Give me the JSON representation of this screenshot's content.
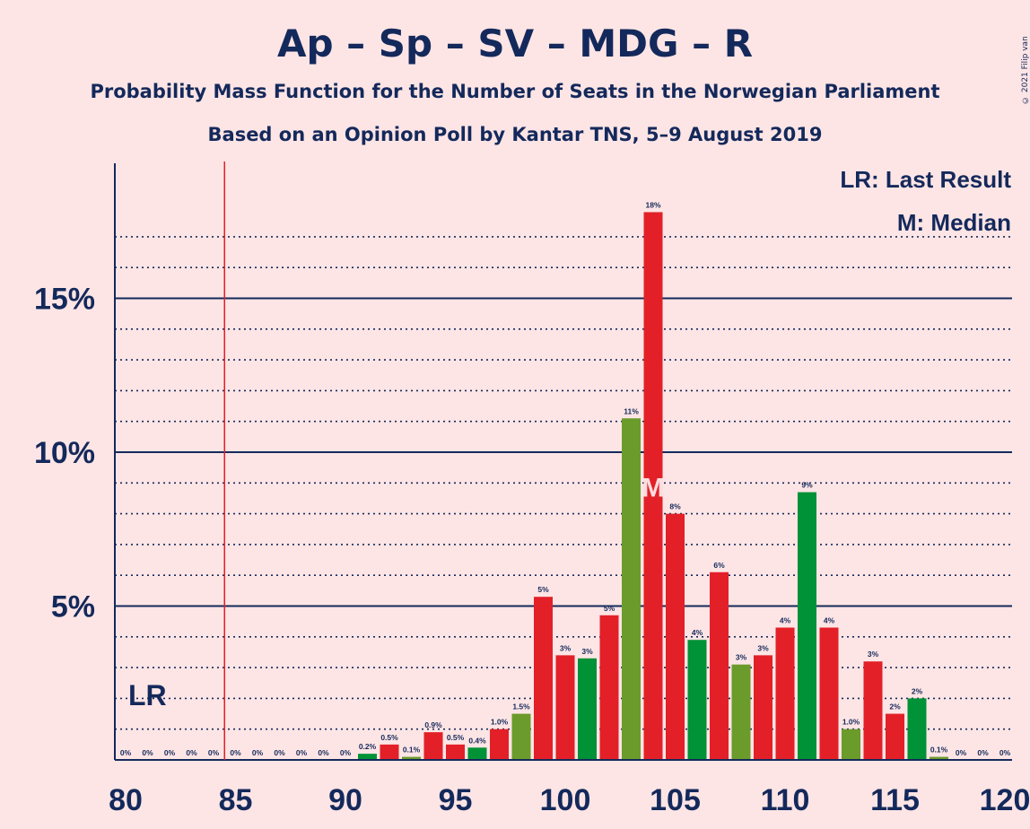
{
  "title": "Ap – Sp – SV – MDG – R",
  "subtitle": "Probability Mass Function for the Number of Seats in the Norwegian Parliament",
  "subtitle2": "Based on an Opinion Poll by Kantar TNS, 5–9 August 2019",
  "copyright": "© 2021 Filip van Laenen",
  "legend": {
    "lr": "LR: Last Result",
    "m": "M: Median"
  },
  "markers": {
    "last_result_label": "LR",
    "last_result_seat": 85,
    "median_label": "M",
    "median_seat": 104
  },
  "colors": {
    "background": "#FDE5E5",
    "text": "#14295B",
    "red": "#E32028",
    "green": "#009236",
    "olive": "#6A9B2B",
    "lr_line": "#E32028"
  },
  "chart_data": {
    "type": "bar",
    "xlim": [
      80,
      120
    ],
    "ylim": [
      0,
      18.5
    ],
    "x_ticks": [
      "80",
      "85",
      "90",
      "95",
      "100",
      "105",
      "110",
      "115",
      "120"
    ],
    "y_ticks": [
      "5%",
      "10%",
      "15%"
    ],
    "bars": [
      {
        "seat": 80,
        "value": 0,
        "label": "0%",
        "color": "red"
      },
      {
        "seat": 81,
        "value": 0,
        "label": "0%",
        "color": "red"
      },
      {
        "seat": 82,
        "value": 0,
        "label": "0%",
        "color": "red"
      },
      {
        "seat": 83,
        "value": 0,
        "label": "0%",
        "color": "red"
      },
      {
        "seat": 84,
        "value": 0,
        "label": "0%",
        "color": "red"
      },
      {
        "seat": 85,
        "value": 0,
        "label": "0%",
        "color": "red"
      },
      {
        "seat": 86,
        "value": 0,
        "label": "0%",
        "color": "red"
      },
      {
        "seat": 87,
        "value": 0,
        "label": "0%",
        "color": "red"
      },
      {
        "seat": 88,
        "value": 0,
        "label": "0%",
        "color": "red"
      },
      {
        "seat": 89,
        "value": 0,
        "label": "0%",
        "color": "red"
      },
      {
        "seat": 90,
        "value": 0,
        "label": "0%",
        "color": "red"
      },
      {
        "seat": 91,
        "value": 0.2,
        "label": "0.2%",
        "color": "green"
      },
      {
        "seat": 92,
        "value": 0.5,
        "label": "0.5%",
        "color": "red"
      },
      {
        "seat": 93,
        "value": 0.1,
        "label": "0.1%",
        "color": "olive"
      },
      {
        "seat": 94,
        "value": 0.9,
        "label": "0.9%",
        "color": "red"
      },
      {
        "seat": 95,
        "value": 0.5,
        "label": "0.5%",
        "color": "red"
      },
      {
        "seat": 96,
        "value": 0.4,
        "label": "0.4%",
        "color": "green"
      },
      {
        "seat": 97,
        "value": 1.0,
        "label": "1.0%",
        "color": "red"
      },
      {
        "seat": 98,
        "value": 1.5,
        "label": "1.5%",
        "color": "olive"
      },
      {
        "seat": 99,
        "value": 5.3,
        "label": "5%",
        "color": "red"
      },
      {
        "seat": 100,
        "value": 3.4,
        "label": "3%",
        "color": "red"
      },
      {
        "seat": 101,
        "value": 3.3,
        "label": "3%",
        "color": "green"
      },
      {
        "seat": 102,
        "value": 4.7,
        "label": "5%",
        "color": "red"
      },
      {
        "seat": 103,
        "value": 11.1,
        "label": "11%",
        "color": "olive"
      },
      {
        "seat": 104,
        "value": 17.8,
        "label": "18%",
        "color": "red"
      },
      {
        "seat": 105,
        "value": 8.0,
        "label": "8%",
        "color": "red"
      },
      {
        "seat": 106,
        "value": 3.9,
        "label": "4%",
        "color": "green"
      },
      {
        "seat": 107,
        "value": 6.1,
        "label": "6%",
        "color": "red"
      },
      {
        "seat": 108,
        "value": 3.1,
        "label": "3%",
        "color": "olive"
      },
      {
        "seat": 109,
        "value": 3.4,
        "label": "3%",
        "color": "red"
      },
      {
        "seat": 110,
        "value": 4.3,
        "label": "4%",
        "color": "red"
      },
      {
        "seat": 111,
        "value": 8.7,
        "label": "9%",
        "color": "green"
      },
      {
        "seat": 112,
        "value": 4.3,
        "label": "4%",
        "color": "red"
      },
      {
        "seat": 113,
        "value": 1.0,
        "label": "1.0%",
        "color": "olive"
      },
      {
        "seat": 114,
        "value": 3.2,
        "label": "3%",
        "color": "red"
      },
      {
        "seat": 115,
        "value": 1.5,
        "label": "2%",
        "color": "red"
      },
      {
        "seat": 116,
        "value": 2.0,
        "label": "2%",
        "color": "green"
      },
      {
        "seat": 117,
        "value": 0.1,
        "label": "0.1%",
        "color": "olive"
      },
      {
        "seat": 118,
        "value": 0,
        "label": "0%",
        "color": "red"
      },
      {
        "seat": 119,
        "value": 0,
        "label": "0%",
        "color": "red"
      },
      {
        "seat": 120,
        "value": 0,
        "label": "0%",
        "color": "red"
      }
    ]
  }
}
